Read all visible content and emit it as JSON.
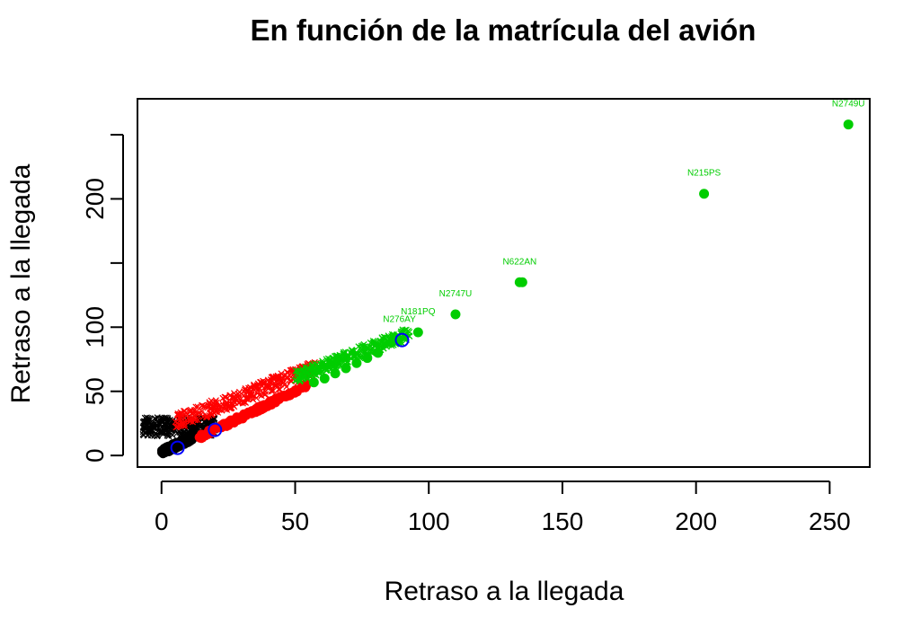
{
  "chart_data": {
    "type": "scatter",
    "title": "En función de la matrícula del avión",
    "xlabel": "Retraso a la llegada",
    "ylabel": "Retraso a la llegada",
    "xlim": [
      -9,
      265
    ],
    "ylim": [
      -9,
      278
    ],
    "x_ticks": [
      0,
      50,
      100,
      150,
      200,
      250
    ],
    "x_tick_labels": [
      "0",
      "50",
      "100",
      "150",
      "200",
      "250"
    ],
    "y_ticks": [
      0,
      50,
      100,
      150,
      200,
      250
    ],
    "y_tick_labels": [
      "0",
      "50",
      "100",
      "",
      "200",
      ""
    ],
    "grid": false,
    "colors": {
      "black": "#000000",
      "red": "#ff0000",
      "green": "#00cd00",
      "blue": "#0000ff"
    },
    "dense_bands": [
      {
        "color": "black",
        "marker": "cross",
        "x_range": [
          -7,
          20
        ],
        "y_range": [
          15,
          30
        ],
        "relation": "flat"
      },
      {
        "color": "black",
        "marker": "dot",
        "x_range": [
          0,
          12
        ],
        "y_offset": [
          0,
          5
        ],
        "relation": "diagonal"
      },
      {
        "color": "red",
        "marker": "cross",
        "x_range": [
          5,
          58
        ],
        "y_intercept": [
          16,
          28
        ],
        "slope": 0.8
      },
      {
        "color": "red",
        "marker": "dot",
        "x_range": [
          14,
          55
        ],
        "y_offset": [
          -2,
          2
        ],
        "relation": "diagonal"
      },
      {
        "color": "green",
        "marker": "cross",
        "x_range": [
          50,
          93
        ],
        "y_intercept": [
          16,
          26
        ],
        "slope": 0.8
      }
    ],
    "series": [
      {
        "color": "green",
        "marker": "dot",
        "points": [
          [
            57,
            57
          ],
          [
            61,
            60
          ],
          [
            65,
            64
          ],
          [
            69,
            68
          ],
          [
            73,
            72
          ],
          [
            77,
            76
          ],
          [
            81,
            80
          ],
          [
            86,
            88
          ],
          [
            96,
            96
          ],
          [
            110,
            110
          ],
          [
            134,
            135
          ],
          [
            135,
            135
          ],
          [
            203,
            204
          ],
          [
            257,
            258
          ]
        ]
      },
      {
        "color": "blue",
        "marker": "open-circle",
        "points": [
          [
            6,
            6
          ],
          [
            20,
            20
          ],
          [
            90,
            90
          ]
        ]
      }
    ],
    "annotations": [
      {
        "text": "N2749U",
        "x": 257,
        "y": 258,
        "color": "green"
      },
      {
        "text": "N215PS",
        "x": 203,
        "y": 204,
        "color": "green"
      },
      {
        "text": "N622AN",
        "x": 134,
        "y": 135,
        "color": "green"
      },
      {
        "text": "N2747U",
        "x": 110,
        "y": 110,
        "color": "green"
      },
      {
        "text": "N181PQ",
        "x": 96,
        "y": 96,
        "color": "green"
      },
      {
        "text": "N276AY",
        "x": 89,
        "y": 90,
        "color": "green"
      }
    ]
  }
}
